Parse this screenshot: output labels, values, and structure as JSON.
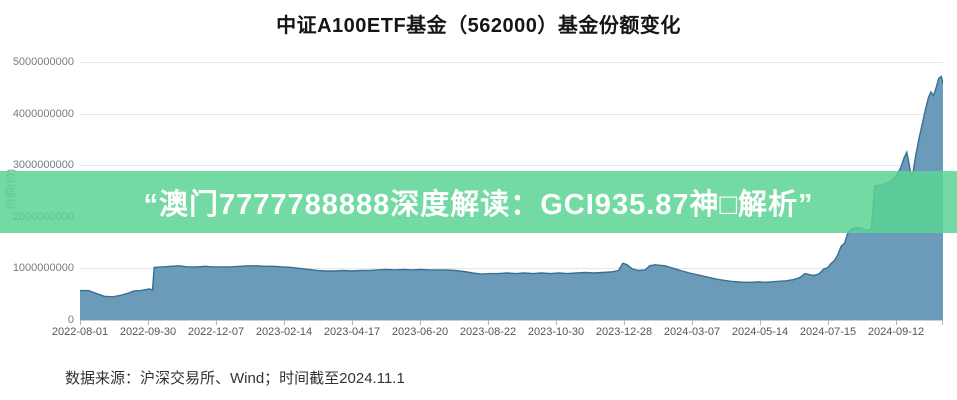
{
  "banner": {
    "text": "“澳门7777788888深度解读：GCI935.87神□解析”",
    "bg_rgba": "rgba(92,212,148,0.85)",
    "text_color": "#ffffff"
  },
  "footer": {
    "text": "数据来源：沪深交易所、Wind；时间截至2024.11.1"
  },
  "chart_data": {
    "type": "area",
    "title": "中证A100ETF基金（562000）基金份额变化",
    "xlabel": "",
    "ylabel": "份额(份)",
    "ylim": [
      0,
      5000000000
    ],
    "grid": true,
    "legend_position": "none",
    "colors": {
      "fill": "#6B9BB9",
      "line": "#3B6E93",
      "gridline": "#e7e7e7"
    },
    "y_ticks": [
      0,
      1000000000,
      2000000000,
      3000000000,
      4000000000,
      5000000000
    ],
    "x_ticks": [
      "2022-08-01",
      "2022-09-30",
      "2022-12-07",
      "2023-02-14",
      "2023-04-17",
      "2023-06-20",
      "2023-08-22",
      "2023-10-30",
      "2023-12-28",
      "2024-03-07",
      "2024-05-14",
      "2024-07-15",
      "2024-09-12"
    ],
    "points": [
      [
        0.0,
        570000000
      ],
      [
        0.01,
        570000000
      ],
      [
        0.018,
        520000000
      ],
      [
        0.028,
        460000000
      ],
      [
        0.038,
        450000000
      ],
      [
        0.048,
        480000000
      ],
      [
        0.056,
        520000000
      ],
      [
        0.062,
        560000000
      ],
      [
        0.07,
        570000000
      ],
      [
        0.076,
        590000000
      ],
      [
        0.081,
        600000000
      ],
      [
        0.084,
        580000000
      ],
      [
        0.086,
        1020000000
      ],
      [
        0.095,
        1030000000
      ],
      [
        0.105,
        1040000000
      ],
      [
        0.115,
        1050000000
      ],
      [
        0.125,
        1030000000
      ],
      [
        0.135,
        1030000000
      ],
      [
        0.145,
        1040000000
      ],
      [
        0.155,
        1030000000
      ],
      [
        0.165,
        1030000000
      ],
      [
        0.175,
        1030000000
      ],
      [
        0.185,
        1040000000
      ],
      [
        0.195,
        1050000000
      ],
      [
        0.205,
        1050000000
      ],
      [
        0.215,
        1040000000
      ],
      [
        0.225,
        1040000000
      ],
      [
        0.235,
        1030000000
      ],
      [
        0.245,
        1020000000
      ],
      [
        0.255,
        1000000000
      ],
      [
        0.265,
        980000000
      ],
      [
        0.275,
        960000000
      ],
      [
        0.285,
        950000000
      ],
      [
        0.295,
        950000000
      ],
      [
        0.305,
        960000000
      ],
      [
        0.315,
        950000000
      ],
      [
        0.325,
        960000000
      ],
      [
        0.335,
        960000000
      ],
      [
        0.345,
        970000000
      ],
      [
        0.355,
        980000000
      ],
      [
        0.365,
        970000000
      ],
      [
        0.375,
        980000000
      ],
      [
        0.385,
        970000000
      ],
      [
        0.395,
        980000000
      ],
      [
        0.405,
        970000000
      ],
      [
        0.415,
        970000000
      ],
      [
        0.425,
        970000000
      ],
      [
        0.435,
        960000000
      ],
      [
        0.445,
        940000000
      ],
      [
        0.455,
        910000000
      ],
      [
        0.465,
        890000000
      ],
      [
        0.475,
        900000000
      ],
      [
        0.485,
        900000000
      ],
      [
        0.495,
        910000000
      ],
      [
        0.505,
        900000000
      ],
      [
        0.515,
        910000000
      ],
      [
        0.525,
        900000000
      ],
      [
        0.535,
        910000000
      ],
      [
        0.545,
        900000000
      ],
      [
        0.555,
        910000000
      ],
      [
        0.565,
        900000000
      ],
      [
        0.575,
        910000000
      ],
      [
        0.585,
        920000000
      ],
      [
        0.595,
        910000000
      ],
      [
        0.605,
        920000000
      ],
      [
        0.615,
        930000000
      ],
      [
        0.624,
        960000000
      ],
      [
        0.629,
        1100000000
      ],
      [
        0.634,
        1070000000
      ],
      [
        0.64,
        990000000
      ],
      [
        0.647,
        960000000
      ],
      [
        0.655,
        970000000
      ],
      [
        0.66,
        1050000000
      ],
      [
        0.666,
        1070000000
      ],
      [
        0.672,
        1060000000
      ],
      [
        0.678,
        1050000000
      ],
      [
        0.684,
        1020000000
      ],
      [
        0.69,
        990000000
      ],
      [
        0.698,
        950000000
      ],
      [
        0.706,
        910000000
      ],
      [
        0.714,
        880000000
      ],
      [
        0.722,
        850000000
      ],
      [
        0.73,
        820000000
      ],
      [
        0.738,
        790000000
      ],
      [
        0.746,
        770000000
      ],
      [
        0.754,
        750000000
      ],
      [
        0.762,
        740000000
      ],
      [
        0.77,
        730000000
      ],
      [
        0.778,
        730000000
      ],
      [
        0.786,
        740000000
      ],
      [
        0.794,
        730000000
      ],
      [
        0.802,
        740000000
      ],
      [
        0.81,
        750000000
      ],
      [
        0.818,
        760000000
      ],
      [
        0.826,
        780000000
      ],
      [
        0.834,
        820000000
      ],
      [
        0.84,
        900000000
      ],
      [
        0.845,
        880000000
      ],
      [
        0.85,
        860000000
      ],
      [
        0.856,
        890000000
      ],
      [
        0.862,
        990000000
      ],
      [
        0.866,
        1010000000
      ],
      [
        0.87,
        1090000000
      ],
      [
        0.874,
        1150000000
      ],
      [
        0.878,
        1260000000
      ],
      [
        0.882,
        1430000000
      ],
      [
        0.886,
        1490000000
      ],
      [
        0.89,
        1700000000
      ],
      [
        0.894,
        1760000000
      ],
      [
        0.9,
        1790000000
      ],
      [
        0.906,
        1780000000
      ],
      [
        0.912,
        1730000000
      ],
      [
        0.917,
        1760000000
      ],
      [
        0.921,
        2600000000
      ],
      [
        0.928,
        2620000000
      ],
      [
        0.934,
        2650000000
      ],
      [
        0.94,
        2700000000
      ],
      [
        0.946,
        2800000000
      ],
      [
        0.951,
        2950000000
      ],
      [
        0.955,
        3150000000
      ],
      [
        0.958,
        3250000000
      ],
      [
        0.961,
        3000000000
      ],
      [
        0.964,
        2720000000
      ],
      [
        0.968,
        3150000000
      ],
      [
        0.972,
        3500000000
      ],
      [
        0.976,
        3800000000
      ],
      [
        0.98,
        4100000000
      ],
      [
        0.983,
        4300000000
      ],
      [
        0.986,
        4420000000
      ],
      [
        0.989,
        4350000000
      ],
      [
        0.992,
        4500000000
      ],
      [
        0.995,
        4680000000
      ],
      [
        0.998,
        4720000000
      ],
      [
        1.0,
        4580000000
      ]
    ]
  }
}
